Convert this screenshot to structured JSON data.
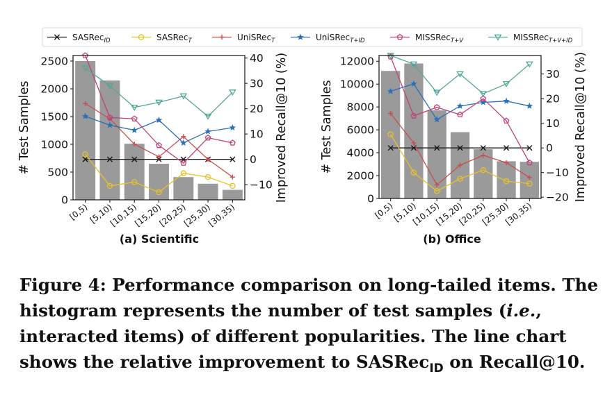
{
  "legend": [
    {
      "label": "SASRec",
      "sub": "ID",
      "color": "#1a1a1a",
      "marker": "x"
    },
    {
      "label": "SASRec",
      "sub": "T",
      "color": "#e6c229",
      "marker": "circle"
    },
    {
      "label": "UniSRec",
      "sub": "T",
      "color": "#c4504f",
      "marker": "plus"
    },
    {
      "label": "UniSRec",
      "sub": "T+ID",
      "color": "#2a6fb8",
      "marker": "star"
    },
    {
      "label": "MISSRec",
      "sub": "T+V",
      "color": "#c2417a",
      "marker": "pentagon"
    },
    {
      "label": "MISSRec",
      "sub": "T+V+ID",
      "color": "#52a898",
      "marker": "triangle-down"
    }
  ],
  "chart_data": [
    {
      "type": "bar+line",
      "title": "(a) Scientific",
      "categories": [
        "[0,5)",
        "[5,10)",
        "[10,15)",
        "[15,20)",
        "[20,25)",
        "[25,30)",
        "[30,35)"
      ],
      "ylabel": "# Test Samples",
      "ylabel2": "Improved Recall@10 (%)",
      "ylim": [
        0,
        2600
      ],
      "ylim2": [
        -16,
        41
      ],
      "yticks": [
        0,
        500,
        1000,
        1500,
        2000,
        2500
      ],
      "yticks2": [
        -10,
        0,
        10,
        20,
        30,
        40
      ],
      "bars": [
        2500,
        2150,
        1010,
        650,
        410,
        290,
        180
      ],
      "series": [
        {
          "name": "SASRec_ID",
          "values": [
            0,
            0,
            0,
            0,
            0,
            0,
            0
          ]
        },
        {
          "name": "SASRec_T",
          "values": [
            2,
            -10.5,
            -9,
            -13,
            -5.5,
            -7,
            -10.5
          ]
        },
        {
          "name": "UniSRec_T",
          "values": [
            22,
            16,
            6,
            1,
            9,
            0,
            -7
          ]
        },
        {
          "name": "UniSRec_T+ID",
          "values": [
            17,
            13.5,
            11.5,
            15.5,
            6.5,
            11,
            12.5
          ]
        },
        {
          "name": "MISSRec_T+V",
          "values": [
            41,
            16.5,
            16,
            5.5,
            -1.5,
            8.5,
            6.5
          ]
        },
        {
          "name": "MISSRec_T+V+ID",
          "values": [
            36,
            29,
            20.5,
            22.5,
            25,
            17,
            26.5
          ]
        }
      ]
    },
    {
      "type": "bar+line",
      "title": "(b) Office",
      "categories": [
        "[0,5)",
        "[5,10)",
        "[10,15)",
        "[15,20)",
        "[20,25)",
        "[25,30)",
        "[30,35)"
      ],
      "ylabel": "# Test Samples",
      "ylabel2": "Improved Recall@10 (%)",
      "ylim": [
        0,
        12500
      ],
      "ylim2": [
        -20.5,
        37.5
      ],
      "yticks": [
        0,
        2000,
        4000,
        6000,
        8000,
        10000,
        12000
      ],
      "yticks2": [
        -20,
        -10,
        0,
        10,
        20,
        30
      ],
      "bars": [
        11150,
        11800,
        7700,
        5800,
        4300,
        3250,
        3200
      ],
      "series": [
        {
          "name": "SASRec_ID",
          "values": [
            0,
            0,
            0,
            0,
            0,
            0,
            0
          ]
        },
        {
          "name": "SASRec_T",
          "values": [
            5.5,
            -10,
            -17.5,
            -12.5,
            -9,
            -13.5,
            -14.5
          ]
        },
        {
          "name": "UniSRec_T",
          "values": [
            14,
            2,
            -15,
            -7,
            -3,
            -6,
            -12
          ]
        },
        {
          "name": "UniSRec_T+ID",
          "values": [
            23,
            26,
            11.5,
            17,
            18.5,
            19,
            17
          ]
        },
        {
          "name": "MISSRec_T+V",
          "values": [
            37,
            13,
            16.5,
            13.5,
            20,
            11,
            -6
          ]
        },
        {
          "name": "MISSRec_T+V+ID",
          "values": [
            37.5,
            34,
            22.5,
            30,
            22,
            26,
            34
          ]
        }
      ]
    }
  ],
  "caption": {
    "label": "Figure 4:",
    "text1": "Performance comparison on long-tailed items. The histogram represents the number of test samples (",
    "ie": "i.e.",
    "text2": ", interacted items) of different popularities. The line chart shows the relative improvement to SASRec",
    "sub": "ID",
    "text3": " on Recall@10."
  }
}
